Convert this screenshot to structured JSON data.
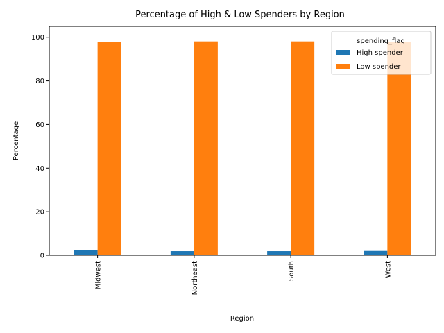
{
  "chart_data": {
    "type": "bar",
    "title": "Percentage of High & Low Spenders by Region",
    "xlabel": "Region",
    "ylabel": "Percentage",
    "categories": [
      "Midwest",
      "Northeast",
      "South",
      "West"
    ],
    "ylim": [
      0,
      105
    ],
    "yticks": [
      "0",
      "20",
      "40",
      "60",
      "80",
      "100"
    ],
    "grid": false,
    "legend": {
      "title": "spending_flag",
      "placement": "top-right"
    },
    "series": [
      {
        "name": "High spender",
        "color": "#1f77b4",
        "values": [
          2.3,
          1.9,
          1.9,
          2.0
        ]
      },
      {
        "name": "Low spender",
        "color": "#ff7f0e",
        "values": [
          97.7,
          98.1,
          98.1,
          98.0
        ]
      }
    ]
  }
}
